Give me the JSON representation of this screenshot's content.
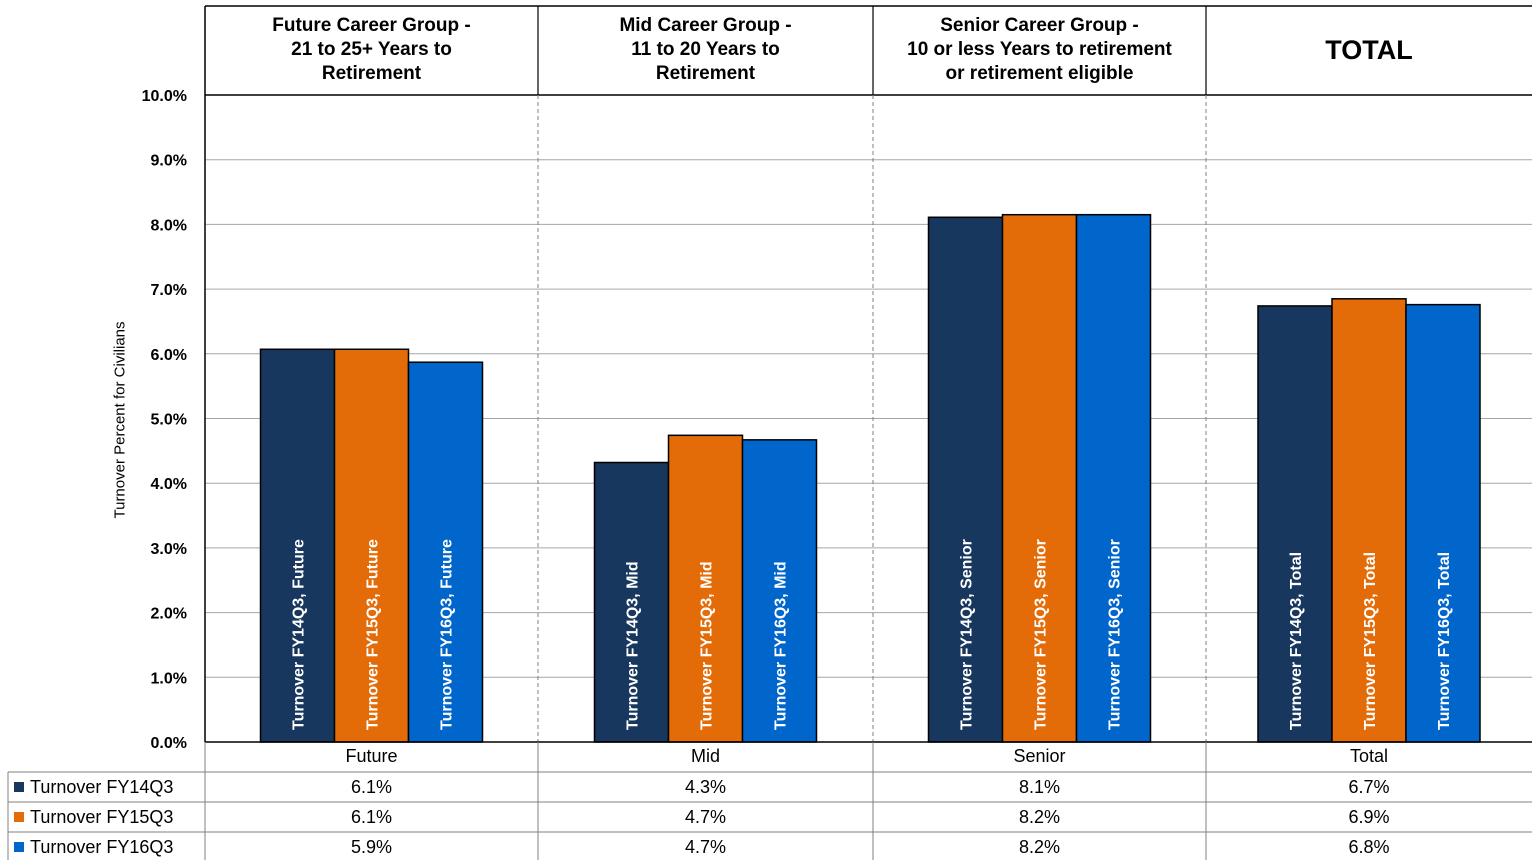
{
  "chart_data": {
    "type": "bar",
    "categories": [
      "Future",
      "Mid",
      "Senior",
      "Total"
    ],
    "group_headers": [
      "Future Career Group -\n21 to 25+ Years to\nRetirement",
      "Mid Career Group -\n11 to 20 Years to\nRetirement",
      "Senior Career Group -\n10 or less Years to retirement\nor retirement eligible",
      "TOTAL"
    ],
    "ylabel": "Turnover Percent for Civilians",
    "ylim": [
      0,
      10
    ],
    "yticks": [
      "0.0%",
      "1.0%",
      "2.0%",
      "3.0%",
      "4.0%",
      "5.0%",
      "6.0%",
      "7.0%",
      "8.0%",
      "9.0%",
      "10.0%"
    ],
    "grid": true,
    "series": [
      {
        "name": "Turnover FY14Q3",
        "color": "#17375E",
        "values": [
          6.07,
          4.32,
          8.11,
          6.74
        ],
        "table_values": [
          "6.1%",
          "4.3%",
          "8.1%",
          "6.7%"
        ],
        "bar_labels": [
          "Turnover FY14Q3, Future",
          "Turnover FY14Q3, Mid",
          "Turnover FY14Q3, Senior",
          "Turnover FY14Q3, Total"
        ]
      },
      {
        "name": "Turnover FY15Q3",
        "color": "#E36C09",
        "values": [
          6.07,
          4.74,
          8.15,
          6.85
        ],
        "table_values": [
          "6.1%",
          "4.7%",
          "8.2%",
          "6.9%"
        ],
        "bar_labels": [
          "Turnover FY15Q3, Future",
          "Turnover FY15Q3, Mid",
          "Turnover FY15Q3, Senior",
          "Turnover FY15Q3, Total"
        ]
      },
      {
        "name": "Turnover FY16Q3",
        "color": "#0066CC",
        "values": [
          5.87,
          4.67,
          8.15,
          6.76
        ],
        "table_values": [
          "5.9%",
          "4.7%",
          "8.2%",
          "6.8%"
        ],
        "bar_labels": [
          "Turnover FY16Q3, Future",
          "Turnover FY16Q3, Mid",
          "Turnover FY16Q3, Senior",
          "Turnover FY16Q3, Total"
        ]
      }
    ]
  }
}
